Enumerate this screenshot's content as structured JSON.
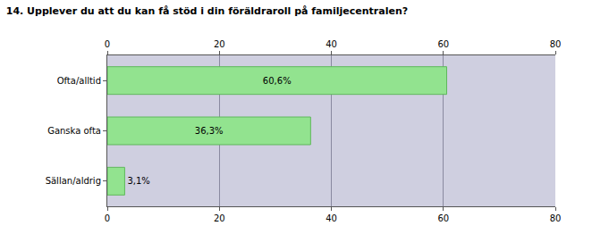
{
  "chart_data": {
    "type": "bar",
    "orientation": "horizontal",
    "title": "14. Upplever du att du kan få stöd i din föräldraroll på familjecentralen?",
    "categories": [
      "Ofta/alltid",
      "Ganska ofta",
      "Sällan/aldrig"
    ],
    "values": [
      60.6,
      36.3,
      3.1
    ],
    "value_labels": [
      "60,6%",
      "36,3%",
      "3,1%"
    ],
    "data_labels": true,
    "color": "#92e38f",
    "xlim": [
      0,
      80
    ],
    "xticks": [
      0,
      20,
      40,
      60,
      80
    ],
    "grid": true
  }
}
